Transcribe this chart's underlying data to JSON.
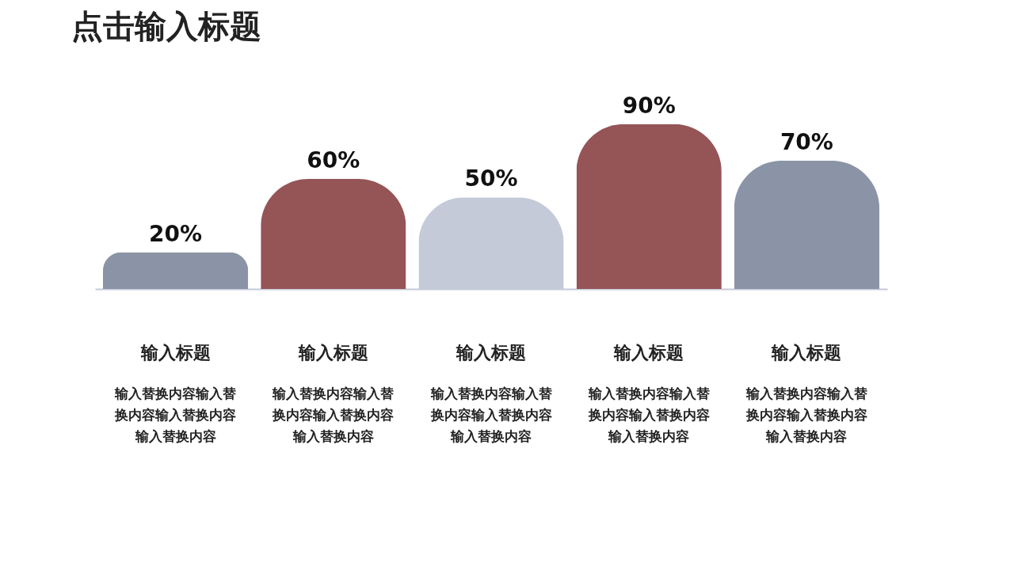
{
  "chart_data": {
    "type": "bar",
    "title": "点击输入标题",
    "categories": [
      "输入标题",
      "输入标题",
      "输入标题",
      "输入标题",
      "输入标题"
    ],
    "values": [
      20,
      60,
      50,
      90,
      70
    ],
    "colors": [
      "#8a94a6",
      "#955456",
      "#c5cad9",
      "#955456",
      "#8a94a6"
    ],
    "value_labels": [
      "20%",
      "60%",
      "50%",
      "90%",
      "70%"
    ],
    "tick_labels": "x",
    "annotations": [
      "输入替换内容输入替换内容输入替换内容输入替换内容",
      "输入替换内容输入替换内容输入替换内容输入替换内容",
      "输入替换内容输入替换内容输入替换内容输入替换内容",
      "输入替换内容输入替换内容输入替换内容输入替换内容",
      "输入替换内容输入替换内容输入替换内容输入替换内容"
    ]
  }
}
